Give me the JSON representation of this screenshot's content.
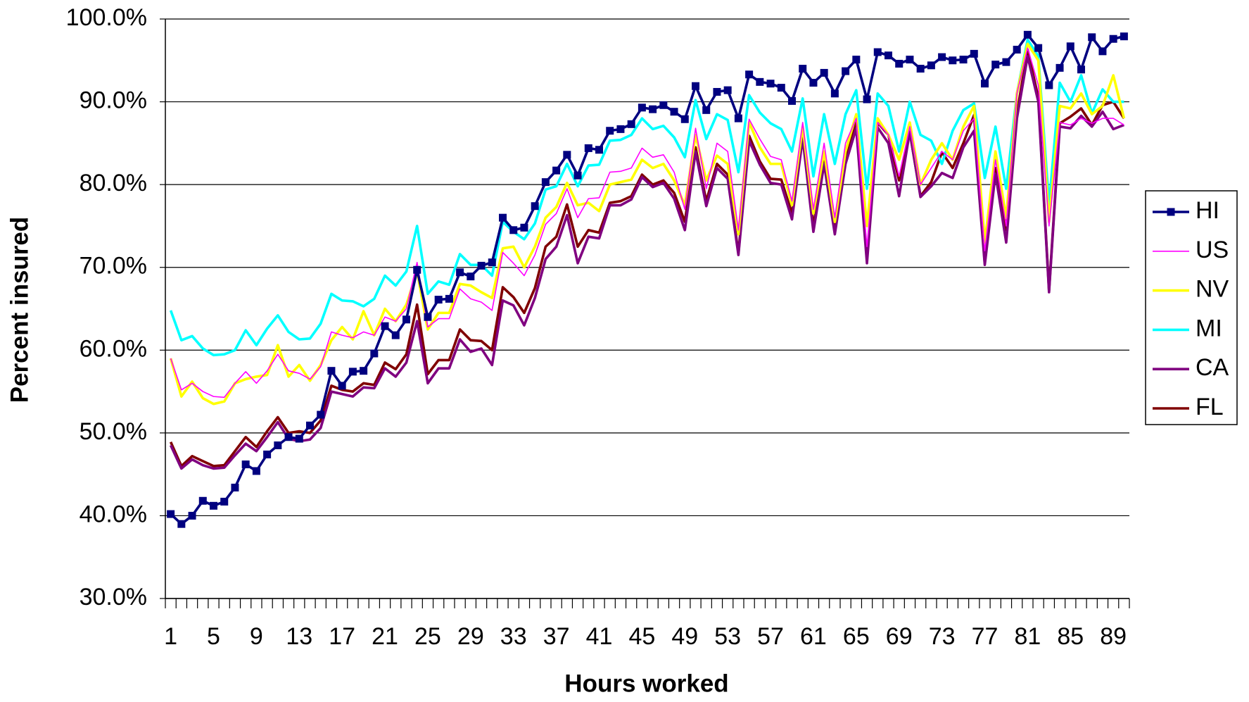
{
  "chart_data": {
    "type": "line",
    "x_label": "Hours worked",
    "y_label": "Percent insured",
    "categories": [
      1,
      null,
      null,
      null,
      5,
      null,
      null,
      null,
      9,
      null,
      null,
      null,
      13,
      null,
      null,
      null,
      17,
      null,
      null,
      null,
      21,
      null,
      null,
      null,
      25,
      null,
      null,
      null,
      29,
      null,
      null,
      null,
      33,
      null,
      null,
      null,
      37,
      null,
      null,
      null,
      41,
      null,
      null,
      null,
      45,
      null,
      null,
      null,
      49,
      null,
      null,
      null,
      53,
      null,
      null,
      null,
      57,
      null,
      null,
      null,
      61,
      null,
      null,
      null,
      65,
      null,
      null,
      null,
      69,
      null,
      null,
      null,
      73,
      null,
      null,
      null,
      77,
      null,
      null,
      null,
      81,
      null,
      null,
      null,
      85,
      null,
      null,
      null,
      89,
      null
    ],
    "ylim": [
      30,
      100
    ],
    "yticks": [
      {
        "value": 30,
        "label": "30.0%"
      },
      {
        "value": 40,
        "label": "40.0%"
      },
      {
        "value": 50,
        "label": "50.0%"
      },
      {
        "value": 60,
        "label": "60.0%"
      },
      {
        "value": 70,
        "label": "70.0%"
      },
      {
        "value": 80,
        "label": "80.0%"
      },
      {
        "value": 90,
        "label": "90.0%"
      },
      {
        "value": 100,
        "label": "100.0%"
      }
    ],
    "grid": true,
    "legend": "right",
    "series": [
      {
        "name": "HI",
        "color": "#000080",
        "marker": "square",
        "values": [
          40.2,
          39.0,
          40.0,
          41.8,
          41.2,
          41.7,
          43.4,
          46.2,
          45.4,
          47.4,
          48.5,
          49.5,
          49.3,
          50.9,
          52.2,
          57.5,
          55.7,
          57.4,
          57.5,
          59.6,
          62.9,
          61.8,
          63.7,
          69.7,
          64.0,
          66.1,
          66.2,
          69.4,
          68.9,
          70.2,
          70.6,
          76.0,
          74.5,
          74.8,
          77.4,
          80.3,
          81.7,
          83.6,
          81.1,
          84.4,
          84.2,
          86.5,
          86.7,
          87.3,
          89.3,
          89.1,
          89.6,
          88.8,
          87.9,
          91.9,
          89.0,
          91.2,
          91.4,
          88.0,
          93.3,
          92.4,
          92.2,
          91.7,
          90.1,
          94.0,
          92.3,
          93.5,
          91.0,
          93.7,
          95.1,
          90.3,
          96.0,
          95.6,
          94.6,
          95.1,
          94.0,
          94.4,
          95.4,
          95.0,
          95.1,
          95.8,
          92.2,
          94.5,
          94.8,
          96.3,
          98.1,
          96.5,
          92.0,
          94.1,
          96.7,
          93.9,
          97.8,
          96.1,
          97.6,
          97.9
        ]
      },
      {
        "name": "US",
        "color": "#ff00ff",
        "values": [
          59,
          55.2,
          56,
          55,
          54.4,
          54.3,
          56,
          57.4,
          56,
          57.5,
          59.5,
          57.5,
          57.2,
          56.5,
          58,
          62.2,
          61.8,
          61.5,
          62.2,
          61.8,
          64,
          63.5,
          65,
          70.6,
          62.8,
          63.8,
          63.8,
          67.4,
          66.2,
          65.8,
          64.8,
          71.8,
          70.5,
          69,
          71.5,
          75.2,
          76.5,
          79.5,
          76,
          78.3,
          78.4,
          81.5,
          81.6,
          82,
          84.4,
          83.3,
          83.6,
          81.5,
          77,
          86.8,
          79.5,
          85,
          84,
          74.5,
          87.9,
          85.5,
          83.4,
          83,
          78,
          87.5,
          77,
          85,
          76,
          85,
          88,
          72.5,
          87.5,
          86,
          81,
          87,
          80,
          82,
          84,
          83,
          86.5,
          88,
          72,
          83,
          75,
          91,
          96.5,
          92,
          75,
          87.5,
          87.2,
          88,
          87.4,
          88,
          88,
          87.2
        ]
      },
      {
        "name": "NV",
        "color": "#ffff00",
        "values": [
          59,
          54.4,
          56.2,
          54.2,
          53.5,
          53.8,
          56,
          56.5,
          56.8,
          57,
          60.6,
          56.8,
          58.2,
          56.3,
          58.2,
          61.2,
          62.8,
          61.3,
          64.7,
          61.8,
          65,
          63.5,
          65.5,
          69.5,
          62.5,
          64.5,
          64.5,
          68,
          67.8,
          67,
          66.3,
          72.3,
          72.5,
          70,
          72.5,
          76,
          77.3,
          80.2,
          77.5,
          77.8,
          76.8,
          80,
          80.3,
          80.6,
          83,
          82,
          82.5,
          80.5,
          77.5,
          86,
          80.5,
          83.5,
          82.5,
          74,
          87.5,
          84.5,
          82.5,
          82.5,
          77.5,
          87,
          76.5,
          84,
          75.5,
          84,
          88.5,
          75,
          88,
          86,
          83,
          87.5,
          80,
          83,
          85,
          83,
          87,
          89.5,
          73,
          84,
          76,
          91,
          97,
          95,
          75.5,
          89.5,
          89.2,
          91,
          88.5,
          89.5,
          93.2,
          88
        ]
      },
      {
        "name": "MI",
        "color": "#00ffff",
        "values": [
          64.8,
          61.2,
          61.7,
          60.2,
          59.4,
          59.5,
          60,
          62.4,
          60.6,
          62.6,
          64.2,
          62.2,
          61.3,
          61.4,
          63.2,
          66.8,
          66,
          65.9,
          65.3,
          66.2,
          69,
          67.8,
          69.5,
          75,
          66.8,
          68.3,
          67.9,
          71.6,
          70.3,
          70.3,
          69,
          75.5,
          74.3,
          73.4,
          75.3,
          79.4,
          79.8,
          82.5,
          79.8,
          82.3,
          82.4,
          85.3,
          85.4,
          86,
          88,
          86.7,
          87.1,
          85.7,
          83.3,
          90.2,
          85.5,
          88.5,
          87.8,
          81.5,
          90.8,
          88.7,
          87.4,
          86.7,
          84,
          90.4,
          81,
          88.5,
          82.5,
          88.5,
          91.4,
          79.5,
          91,
          89.5,
          84,
          90,
          86,
          85.3,
          82.5,
          86.5,
          89,
          89.8,
          80.8,
          87,
          79.5,
          91,
          97.5,
          95.5,
          77.6,
          92.3,
          90,
          93.2,
          88.6,
          91.5,
          90,
          90
        ]
      },
      {
        "name": "CA",
        "color": "#800080",
        "values": [
          48.5,
          45.7,
          46.8,
          46.1,
          45.7,
          45.8,
          47.3,
          48.7,
          47.8,
          49.5,
          51.3,
          49.3,
          49,
          49.2,
          50.6,
          55,
          54.7,
          54.4,
          55.5,
          55.4,
          57.8,
          56.8,
          58.5,
          63.5,
          56,
          57.8,
          57.8,
          61.3,
          59.8,
          60.2,
          58.2,
          66,
          65.4,
          63,
          66.3,
          71,
          72.5,
          76.3,
          70.5,
          73.7,
          73.5,
          77.5,
          77.5,
          78.2,
          80.9,
          79.7,
          80.2,
          78.3,
          74.5,
          84,
          77.4,
          82,
          80.7,
          71.5,
          85.3,
          82.4,
          80.2,
          80,
          75.8,
          85.6,
          74.3,
          82.5,
          74,
          82.5,
          86.8,
          70.5,
          86.9,
          85,
          78.6,
          86.4,
          78.5,
          79.8,
          81.4,
          80.8,
          84.5,
          86.5,
          70.3,
          81.3,
          73,
          88,
          95.5,
          90,
          67,
          87,
          86.8,
          88.3,
          87,
          88.8,
          86.7,
          87.2
        ]
      },
      {
        "name": "FL",
        "color": "#800000",
        "values": [
          48.9,
          46,
          47.2,
          46.6,
          46,
          46.1,
          47.8,
          49.5,
          48.3,
          50.2,
          51.9,
          50,
          50.2,
          50,
          51.5,
          55.7,
          55.2,
          55,
          56,
          55.8,
          58.5,
          57.7,
          59.5,
          65.5,
          57.1,
          58.8,
          58.8,
          62.5,
          61.2,
          61.1,
          60,
          67.6,
          66.4,
          64.5,
          67.5,
          72.5,
          73.7,
          77.6,
          72.5,
          74.5,
          74.2,
          77.8,
          78,
          78.6,
          81.2,
          80,
          80.5,
          79,
          75.5,
          84.5,
          78,
          82.5,
          81.2,
          71.7,
          85.9,
          82.8,
          80.7,
          80.6,
          76.5,
          86.2,
          75,
          82.8,
          74.5,
          83,
          87.5,
          71,
          87.5,
          86,
          80.5,
          86.3,
          78.6,
          80.3,
          83.9,
          82,
          85,
          88.4,
          70.5,
          82,
          74.5,
          88.6,
          96.3,
          90.5,
          67.2,
          87.4,
          88.2,
          89.2,
          87.2,
          89.6,
          90,
          88
        ]
      }
    ]
  }
}
